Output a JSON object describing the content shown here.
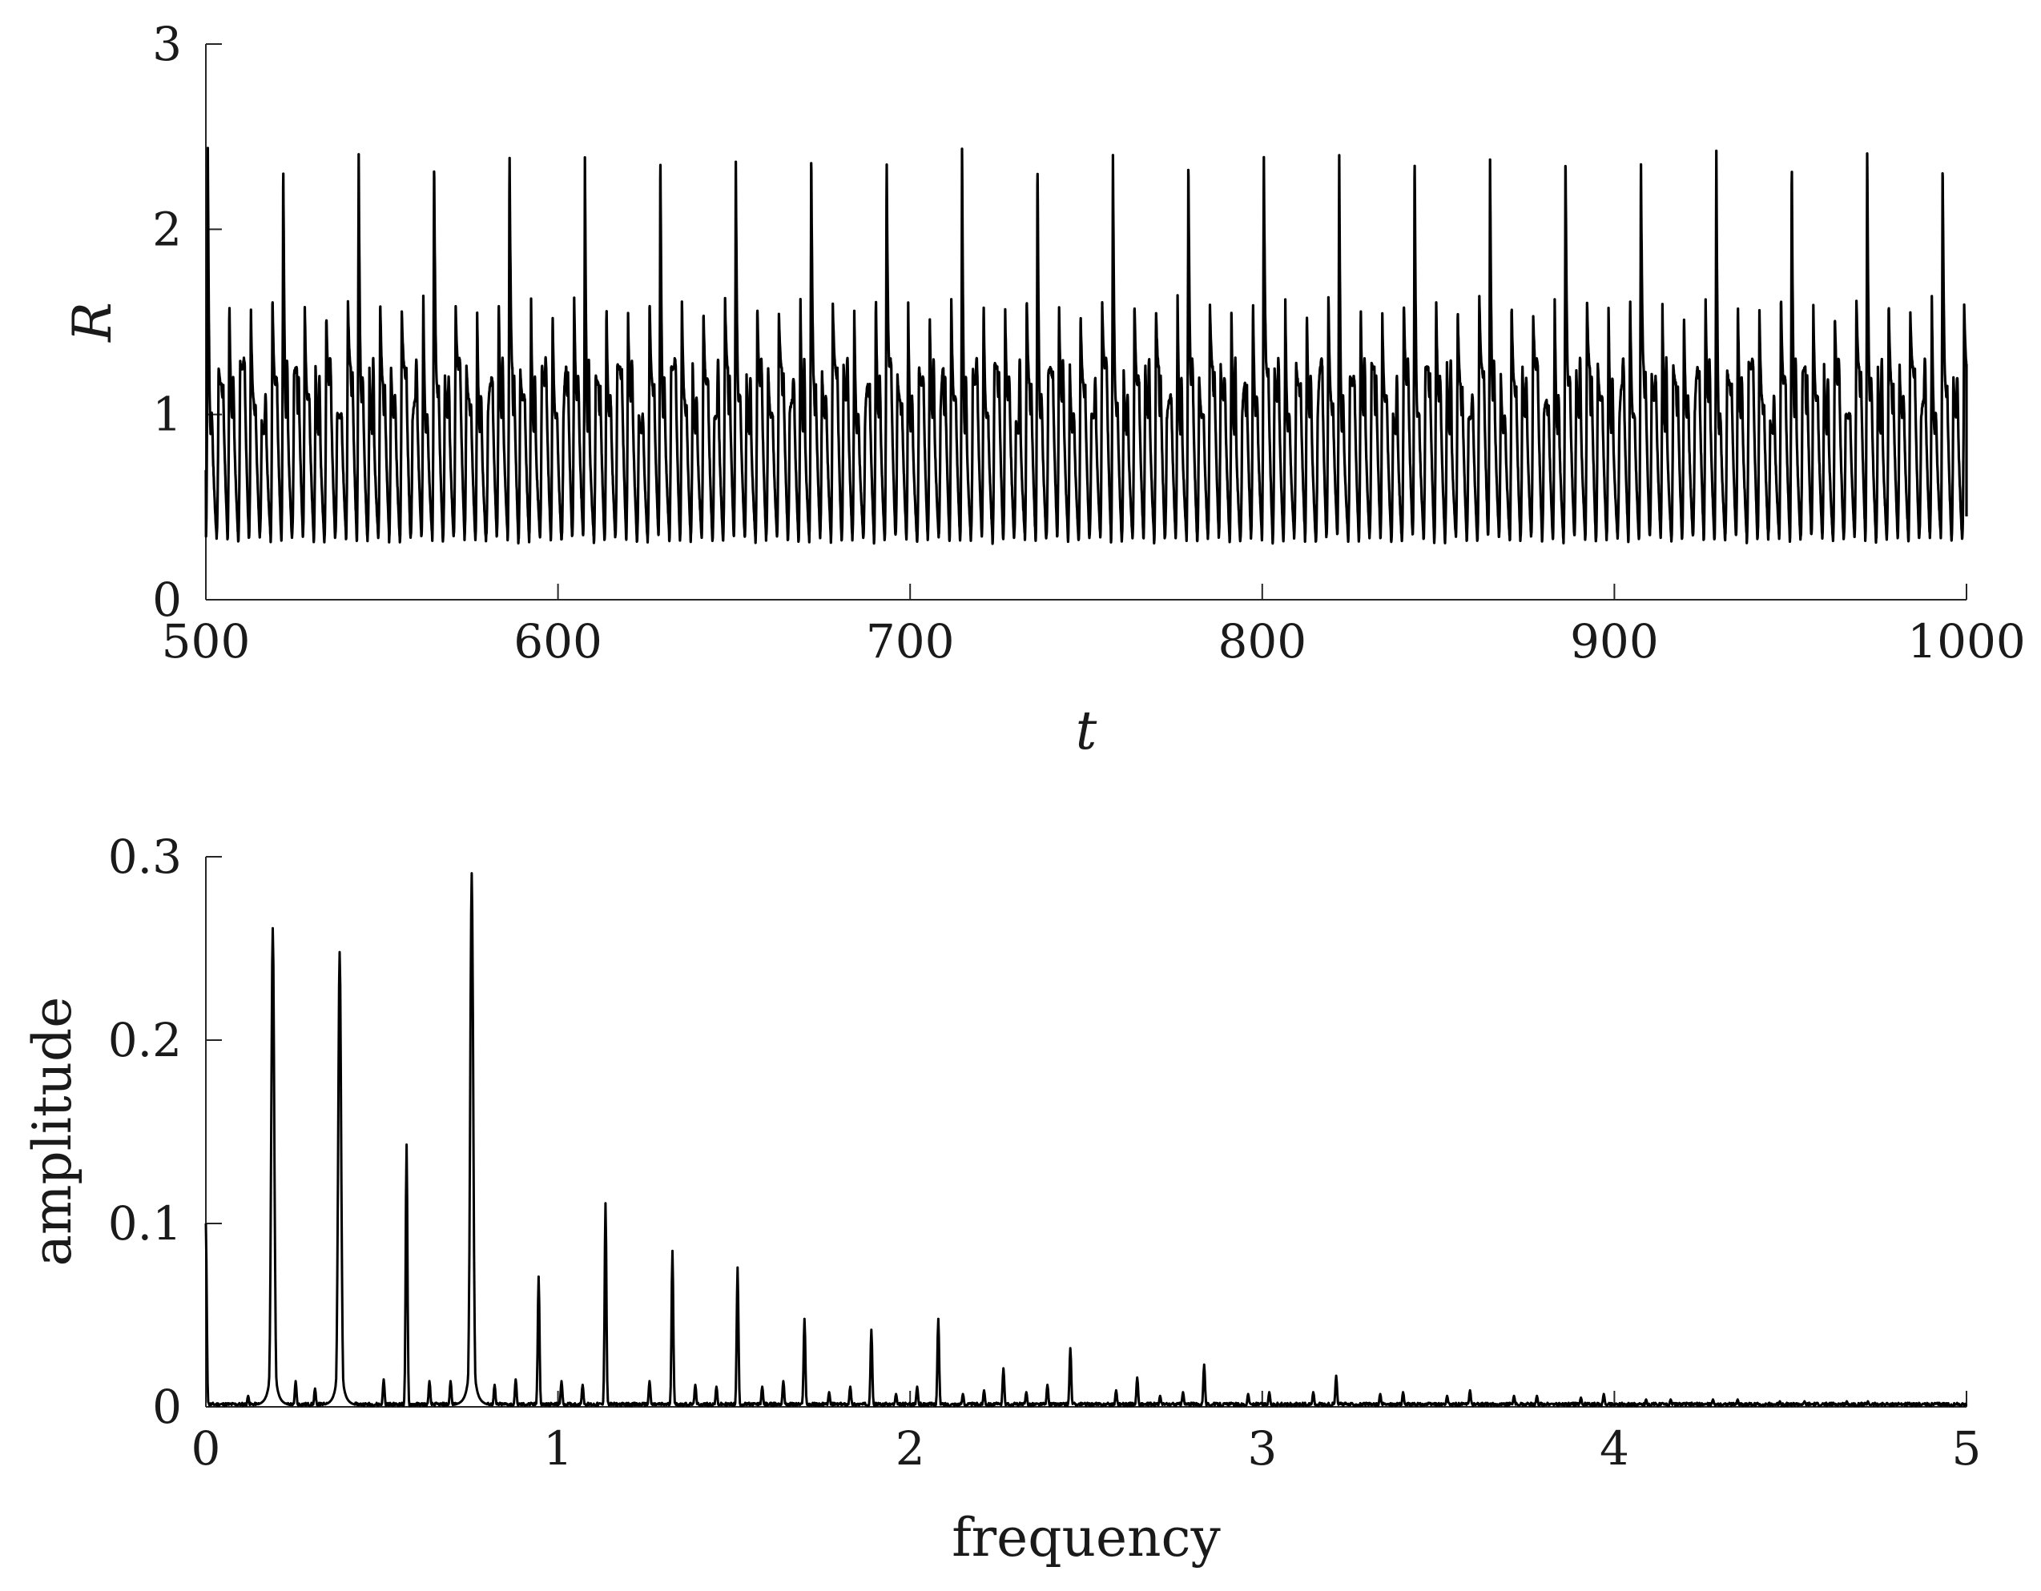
{
  "chart_data": [
    {
      "type": "line",
      "title": "",
      "xlabel": "t",
      "ylabel": "R",
      "xlim": [
        500,
        1000
      ],
      "ylim": [
        0,
        3
      ],
      "xticks": [
        500,
        600,
        700,
        800,
        900,
        1000
      ],
      "yticks": [
        0,
        1,
        2,
        3
      ],
      "xtick_labels": [
        "500",
        "600",
        "700",
        "800",
        "900",
        "1000"
      ],
      "ytick_labels": [
        "0",
        "1",
        "2",
        "3"
      ],
      "grid": false,
      "series_description": "Quasi-periodic oscillation sampled over t = 500..1000. Period of one pulse ≈ 3.06 time units; minima ≈ 0.33; peaks alternate in a repeating cycle ≈ [2.44, 1.25, 1.62, 1.28, 1.57, 0.97, 1.65] with a dense band of small oscillations between ≈ 0.65 and 1.3.",
      "period": 3.06,
      "minimum": 0.33,
      "peak_cycle": [
        2.44,
        1.25,
        1.62,
        1.28,
        1.57,
        0.97,
        1.65,
        2.4,
        1.22,
        1.6,
        1.27,
        1.55,
        1.0,
        1.63
      ],
      "start_value": 0.7,
      "end_value": 0.45
    },
    {
      "type": "line",
      "title": "",
      "xlabel": "frequency",
      "ylabel": "amplitude",
      "xlim": [
        0,
        5
      ],
      "ylim": [
        0,
        0.3
      ],
      "xticks": [
        0,
        1,
        2,
        3,
        4,
        5
      ],
      "yticks": [
        0,
        0.1,
        0.2,
        0.3
      ],
      "xtick_labels": [
        "0",
        "1",
        "2",
        "3",
        "4",
        "5"
      ],
      "ytick_labels": [
        "0",
        "0.1",
        "0.2",
        "0.3"
      ],
      "grid": false,
      "peaks": [
        {
          "x": 0.0,
          "y": 0.1
        },
        {
          "x": 0.19,
          "y": 0.261
        },
        {
          "x": 0.38,
          "y": 0.248
        },
        {
          "x": 0.57,
          "y": 0.143
        },
        {
          "x": 0.755,
          "y": 0.291
        },
        {
          "x": 0.945,
          "y": 0.071
        },
        {
          "x": 1.135,
          "y": 0.111
        },
        {
          "x": 1.325,
          "y": 0.085
        },
        {
          "x": 1.51,
          "y": 0.076
        },
        {
          "x": 1.7,
          "y": 0.048
        },
        {
          "x": 1.89,
          "y": 0.042
        },
        {
          "x": 2.08,
          "y": 0.048
        },
        {
          "x": 2.265,
          "y": 0.021
        },
        {
          "x": 2.455,
          "y": 0.032
        },
        {
          "x": 2.645,
          "y": 0.016
        },
        {
          "x": 2.835,
          "y": 0.023
        },
        {
          "x": 3.02,
          "y": 0.008
        },
        {
          "x": 3.21,
          "y": 0.017
        },
        {
          "x": 3.4,
          "y": 0.008
        },
        {
          "x": 3.59,
          "y": 0.009
        },
        {
          "x": 3.78,
          "y": 0.006
        },
        {
          "x": 3.97,
          "y": 0.007
        },
        {
          "x": 4.16,
          "y": 0.004
        },
        {
          "x": 4.35,
          "y": 0.004
        },
        {
          "x": 4.54,
          "y": 0.003
        },
        {
          "x": 4.72,
          "y": 0.003
        },
        {
          "x": 4.91,
          "y": 0.002
        }
      ],
      "minor_peaks": [
        {
          "x": 0.12,
          "y": 0.006
        },
        {
          "x": 0.255,
          "y": 0.014
        },
        {
          "x": 0.31,
          "y": 0.01
        },
        {
          "x": 0.505,
          "y": 0.015
        },
        {
          "x": 0.635,
          "y": 0.014
        },
        {
          "x": 0.695,
          "y": 0.014
        },
        {
          "x": 0.82,
          "y": 0.012
        },
        {
          "x": 0.88,
          "y": 0.015
        },
        {
          "x": 1.01,
          "y": 0.014
        },
        {
          "x": 1.07,
          "y": 0.012
        },
        {
          "x": 1.26,
          "y": 0.014
        },
        {
          "x": 1.39,
          "y": 0.012
        },
        {
          "x": 1.45,
          "y": 0.011
        },
        {
          "x": 1.58,
          "y": 0.011
        },
        {
          "x": 1.64,
          "y": 0.014
        },
        {
          "x": 1.77,
          "y": 0.008
        },
        {
          "x": 1.83,
          "y": 0.011
        },
        {
          "x": 1.96,
          "y": 0.007
        },
        {
          "x": 2.02,
          "y": 0.011
        },
        {
          "x": 2.15,
          "y": 0.007
        },
        {
          "x": 2.21,
          "y": 0.009
        },
        {
          "x": 2.33,
          "y": 0.008
        },
        {
          "x": 2.39,
          "y": 0.012
        },
        {
          "x": 2.585,
          "y": 0.009
        },
        {
          "x": 2.71,
          "y": 0.006
        },
        {
          "x": 2.775,
          "y": 0.008
        },
        {
          "x": 2.96,
          "y": 0.007
        },
        {
          "x": 3.145,
          "y": 0.008
        },
        {
          "x": 3.335,
          "y": 0.007
        },
        {
          "x": 3.525,
          "y": 0.006
        },
        {
          "x": 3.715,
          "y": 0.006
        },
        {
          "x": 3.905,
          "y": 0.005
        },
        {
          "x": 4.09,
          "y": 0.004
        },
        {
          "x": 4.28,
          "y": 0.004
        },
        {
          "x": 4.47,
          "y": 0.003
        },
        {
          "x": 4.66,
          "y": 0.003
        },
        {
          "x": 4.85,
          "y": 0.002
        }
      ],
      "noise_floor": 0.0015
    }
  ]
}
